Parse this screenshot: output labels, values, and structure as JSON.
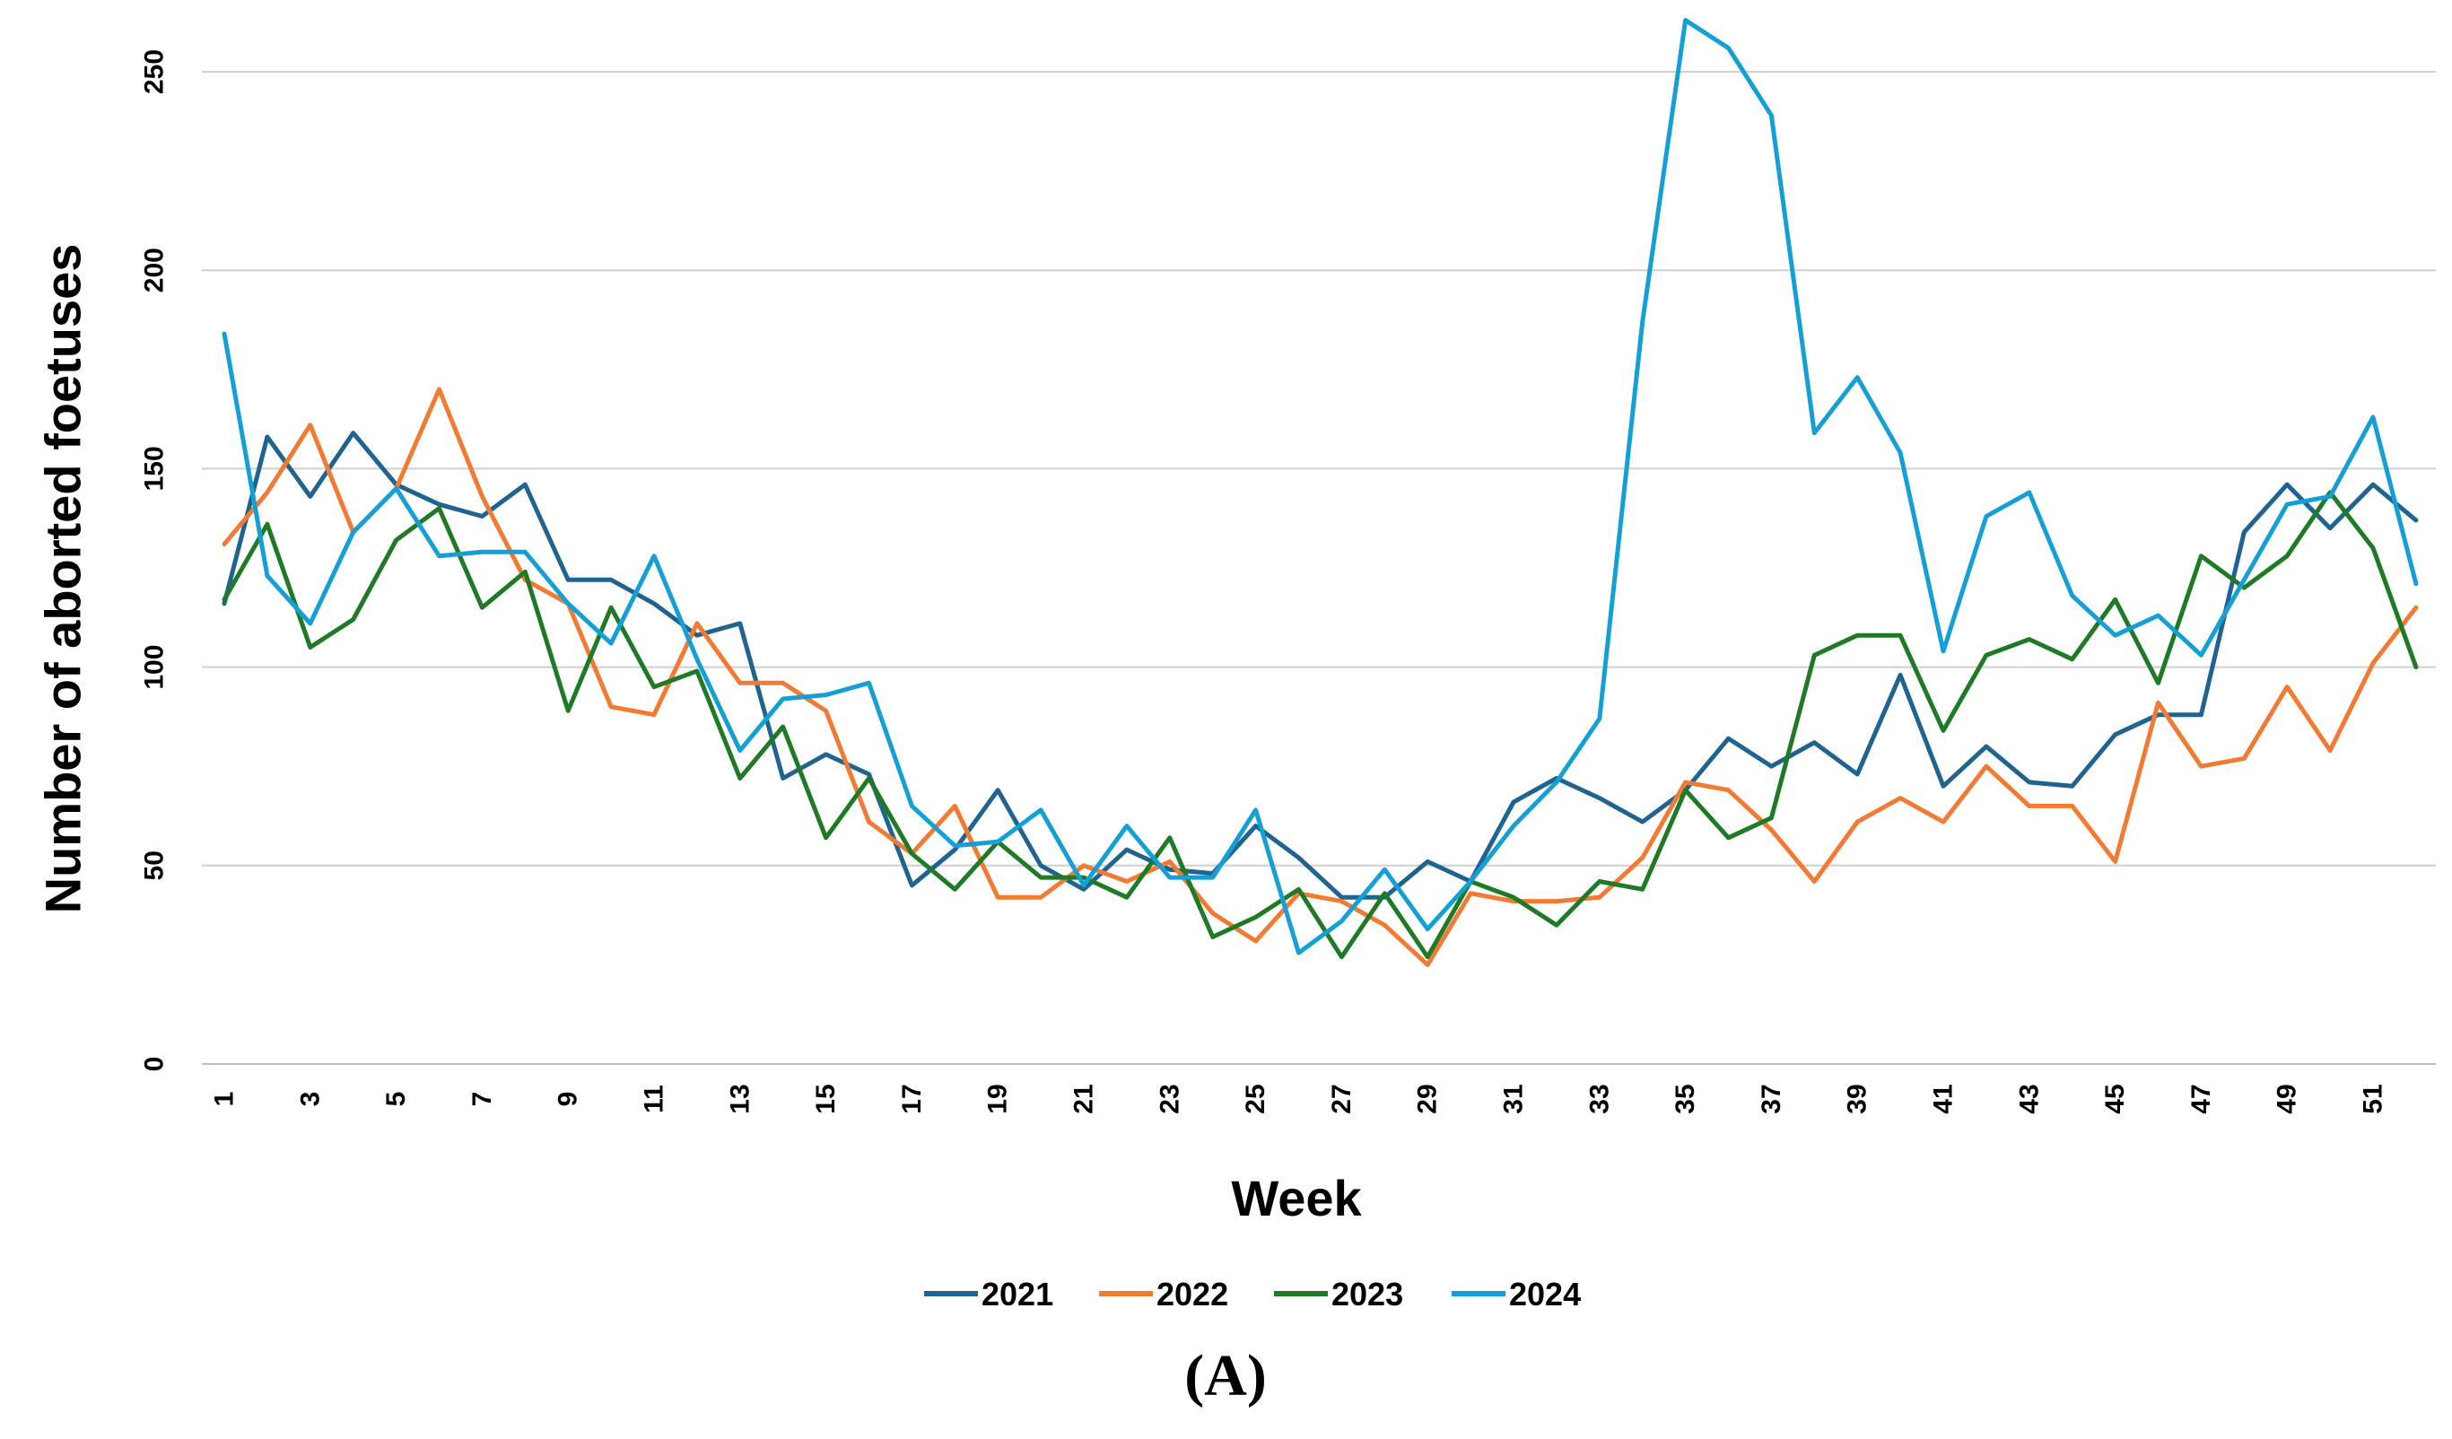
{
  "chart_data": {
    "type": "line",
    "title": "",
    "xlabel": "Week",
    "ylabel": "Number of aborted foetuses",
    "ylim": [
      0,
      260
    ],
    "yticks": [
      0,
      50,
      100,
      150,
      200,
      250
    ],
    "xticks": [
      1,
      3,
      5,
      7,
      9,
      11,
      13,
      15,
      17,
      19,
      21,
      23,
      25,
      27,
      29,
      31,
      33,
      35,
      37,
      39,
      41,
      43,
      45,
      47,
      49,
      51
    ],
    "x": [
      1,
      2,
      3,
      4,
      5,
      6,
      7,
      8,
      9,
      10,
      11,
      12,
      13,
      14,
      15,
      16,
      17,
      18,
      19,
      20,
      21,
      22,
      23,
      24,
      25,
      26,
      27,
      28,
      29,
      30,
      31,
      32,
      33,
      34,
      35,
      36,
      37,
      38,
      39,
      40,
      41,
      42,
      43,
      44,
      45,
      46,
      47,
      48,
      49,
      50,
      51,
      52
    ],
    "grid": true,
    "legend_position": "bottom",
    "panel_label": "(A)",
    "series": [
      {
        "name": "2021",
        "color": "#1f6391",
        "values": [
          116,
          158,
          143,
          159,
          146,
          141,
          138,
          146,
          122,
          122,
          116,
          108,
          111,
          72,
          78,
          73,
          45,
          54,
          69,
          50,
          44,
          54,
          49,
          48,
          60,
          52,
          42,
          42,
          51,
          46,
          66,
          72,
          67,
          61,
          69,
          82,
          75,
          81,
          73,
          98,
          70,
          80,
          71,
          70,
          83,
          88,
          88,
          134,
          146,
          135,
          146,
          137
        ]
      },
      {
        "name": "2022",
        "color": "#f27a33",
        "values": [
          131,
          144,
          161,
          134,
          145,
          170,
          143,
          122,
          116,
          90,
          88,
          111,
          96,
          96,
          89,
          61,
          53,
          65,
          42,
          42,
          50,
          46,
          51,
          38,
          31,
          43,
          41,
          35,
          25,
          43,
          41,
          41,
          42,
          52,
          71,
          69,
          59,
          46,
          61,
          67,
          61,
          75,
          65,
          65,
          51,
          91,
          75,
          77,
          95,
          79,
          101,
          115
        ]
      },
      {
        "name": "2023",
        "color": "#1e7a24",
        "values": [
          117,
          136,
          105,
          112,
          132,
          140,
          115,
          124,
          89,
          115,
          95,
          99,
          72,
          85,
          57,
          72,
          53,
          44,
          56,
          47,
          47,
          42,
          57,
          32,
          37,
          44,
          27,
          43,
          27,
          46,
          42,
          35,
          46,
          44,
          69,
          57,
          62,
          103,
          108,
          108,
          84,
          103,
          107,
          102,
          117,
          96,
          128,
          120,
          128,
          144,
          130,
          100
        ]
      },
      {
        "name": "2024",
        "color": "#14a0d6",
        "values": [
          184,
          123,
          111,
          134,
          145,
          128,
          129,
          129,
          116,
          106,
          128,
          102,
          79,
          92,
          93,
          96,
          65,
          55,
          56,
          64,
          45,
          60,
          47,
          47,
          64,
          28,
          36,
          49,
          34,
          46,
          60,
          71,
          87,
          187,
          263,
          256,
          239,
          159,
          173,
          154,
          104,
          138,
          144,
          118,
          108,
          113,
          103,
          122,
          141,
          143,
          163,
          121
        ]
      }
    ]
  }
}
